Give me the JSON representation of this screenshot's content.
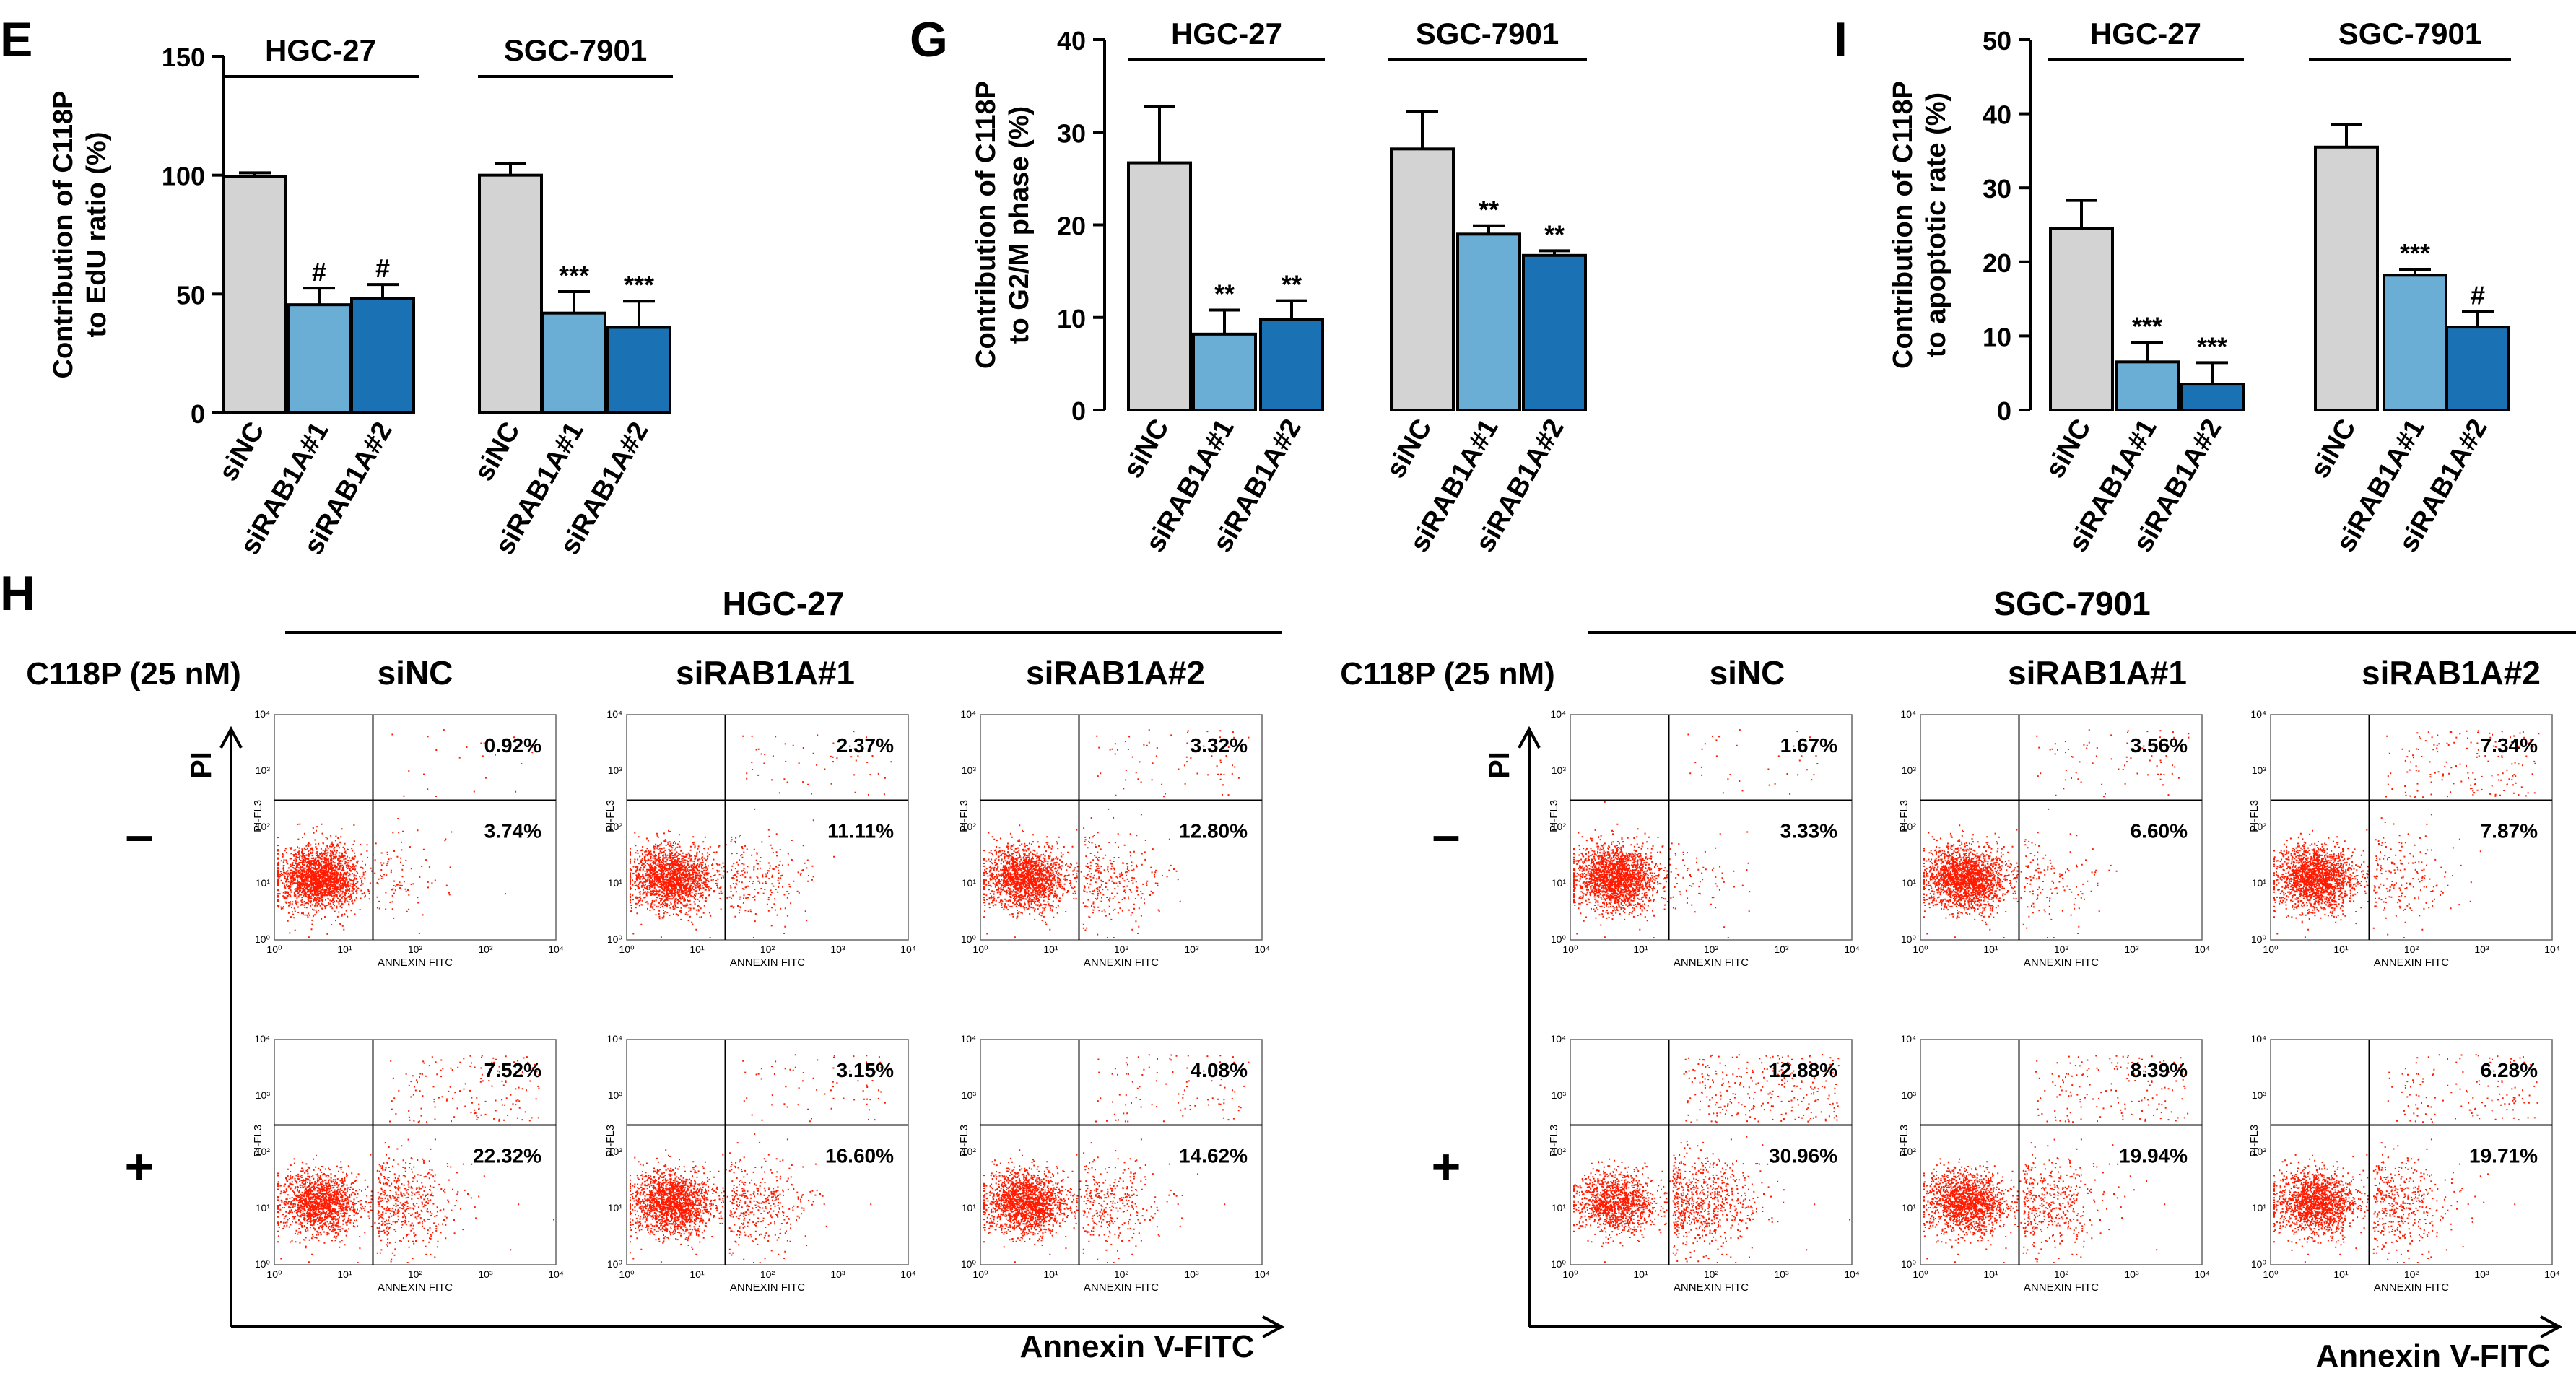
{
  "panels": {
    "E": "E",
    "G": "G",
    "I": "I",
    "H": "H"
  },
  "colors": {
    "siNC": "#d3d3d3",
    "siRAB1A1": "#6aaed6",
    "siRAB1A2": "#1a72b4",
    "dots": "#ff1a00"
  },
  "chart_data": [
    {
      "id": "E",
      "type": "bar",
      "ylabel": [
        "Contribution of C118P",
        "to EdU ratio (%)"
      ],
      "ylim": [
        0,
        150
      ],
      "yticks": [
        0,
        50,
        100,
        150
      ],
      "groups": [
        "HGC-27",
        "SGC-7901"
      ],
      "categories": [
        "siNC",
        "siRAB1A#1",
        "siRAB1A#2"
      ],
      "values": [
        [
          99.5,
          45.5,
          48
        ],
        [
          100,
          42,
          36
        ]
      ],
      "errors": [
        [
          1.5,
          7,
          6
        ],
        [
          5,
          9,
          11
        ]
      ],
      "annotations": [
        [
          "",
          "#",
          "#"
        ],
        [
          "",
          "***",
          "***"
        ]
      ]
    },
    {
      "id": "G",
      "type": "bar",
      "ylabel": [
        "Contribution of C118P",
        "to G2/M phase (%)"
      ],
      "ylim": [
        0,
        40
      ],
      "yticks": [
        0,
        10,
        20,
        30,
        40
      ],
      "groups": [
        "HGC-27",
        "SGC-7901"
      ],
      "categories": [
        "siNC",
        "siRAB1A#1",
        "siRAB1A#2"
      ],
      "values": [
        [
          26.7,
          8.2,
          9.8
        ],
        [
          28.2,
          19,
          16.7
        ]
      ],
      "errors": [
        [
          6.1,
          2.6,
          2.0
        ],
        [
          4.0,
          0.9,
          0.5
        ]
      ],
      "annotations": [
        [
          "",
          "**",
          "**"
        ],
        [
          "",
          "**",
          "**"
        ]
      ]
    },
    {
      "id": "I",
      "type": "bar",
      "ylabel": [
        "Contribution of C118P",
        "to apoptotic rate (%)"
      ],
      "ylim": [
        0,
        50
      ],
      "yticks": [
        0,
        10,
        20,
        30,
        40,
        50
      ],
      "groups": [
        "HGC-27",
        "SGC-7901"
      ],
      "categories": [
        "siNC",
        "siRAB1A#1",
        "siRAB1A#2"
      ],
      "values": [
        [
          24.5,
          6.5,
          3.5
        ],
        [
          35.5,
          18.2,
          11.2
        ]
      ],
      "errors": [
        [
          3.8,
          2.6,
          2.9
        ],
        [
          3.0,
          0.8,
          2.1
        ]
      ],
      "annotations": [
        [
          "",
          "***",
          "***"
        ],
        [
          "",
          "***",
          "#"
        ]
      ]
    },
    {
      "id": "H",
      "type": "scatter",
      "treatment_label": "C118P (25 nM)",
      "rows": [
        "–",
        "+"
      ],
      "ylabel": "PI",
      "xlabel": "Annexin V-FITC",
      "cell_lines": [
        {
          "name": "HGC-27",
          "columns": [
            "siNC",
            "siRAB1A#1",
            "siRAB1A#2"
          ],
          "upper_right": [
            [
              "0.92%",
              "2.37%",
              "3.32%"
            ],
            [
              "7.52%",
              "3.15%",
              "4.08%"
            ]
          ],
          "lower_right": [
            [
              "3.74%",
              "11.11%",
              "12.80%"
            ],
            [
              "22.32%",
              "16.60%",
              "14.62%"
            ]
          ]
        },
        {
          "name": "SGC-7901",
          "columns": [
            "siNC",
            "siRAB1A#1",
            "siRAB1A#2"
          ],
          "upper_right": [
            [
              "1.67%",
              "3.56%",
              "7.34%"
            ],
            [
              "12.88%",
              "8.39%",
              "6.28%"
            ]
          ],
          "lower_right": [
            [
              "3.33%",
              "6.60%",
              "7.87%"
            ],
            [
              "30.96%",
              "19.94%",
              "19.71%"
            ]
          ]
        }
      ],
      "mini_axes": {
        "xlabel": "ANNEXIN FITC",
        "ylabel": "PI-FL3",
        "tick_labels": [
          "10⁰",
          "10¹",
          "10²",
          "10³",
          "10⁴"
        ]
      }
    }
  ]
}
